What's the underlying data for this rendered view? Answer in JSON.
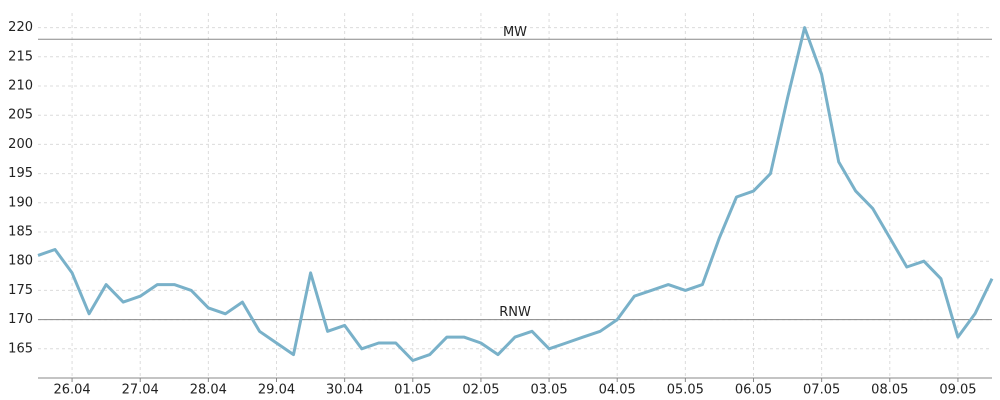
{
  "chart_data": {
    "type": "line",
    "categories": [
      null,
      null,
      "26.04",
      null,
      null,
      null,
      "27.04",
      null,
      null,
      null,
      "28.04",
      null,
      null,
      null,
      "29.04",
      null,
      null,
      null,
      "30.04",
      null,
      null,
      null,
      "01.05",
      null,
      null,
      null,
      "02.05",
      null,
      null,
      null,
      "03.05",
      null,
      null,
      null,
      "04.05",
      null,
      null,
      null,
      "05.05",
      null,
      null,
      null,
      "06.05",
      null,
      null,
      null,
      "07.05",
      null,
      null,
      null,
      "08.05",
      null,
      null,
      null,
      "09.05",
      null,
      null
    ],
    "series": [
      {
        "color": "#79b1c9",
        "values": [
          181,
          182,
          178,
          171,
          176,
          173,
          174,
          176,
          176,
          175,
          172,
          171,
          173,
          168,
          166,
          164,
          178,
          168,
          169,
          165,
          166,
          166,
          163,
          164,
          167,
          167,
          166,
          164,
          167,
          168,
          165,
          166,
          167,
          168,
          170,
          174,
          175,
          176,
          175,
          176,
          184,
          191,
          192,
          195,
          208,
          220,
          212,
          197,
          192,
          189,
          184,
          179,
          180,
          177,
          167,
          171,
          177
        ]
      }
    ],
    "ylim": [
      160,
      222.5
    ],
    "yticks": [
      165,
      170,
      175,
      180,
      185,
      190,
      195,
      200,
      205,
      210,
      215,
      220
    ],
    "reference_lines": [
      {
        "label": "MW",
        "value": 218
      },
      {
        "label": "RNW",
        "value": 170
      }
    ],
    "grid": true
  }
}
